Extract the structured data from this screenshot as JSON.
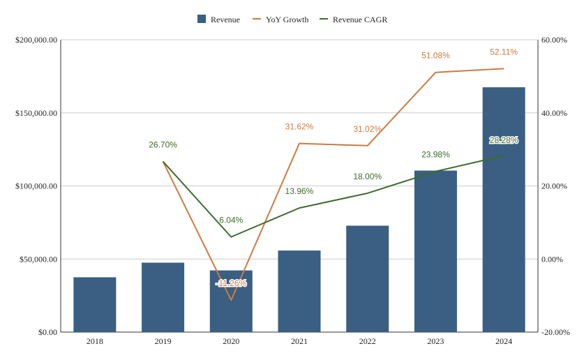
{
  "chart_data": {
    "type": "bar",
    "title": "",
    "xlabel": "",
    "ylabel": "",
    "categories": [
      "2018",
      "2019",
      "2020",
      "2021",
      "2022",
      "2023",
      "2024"
    ],
    "left_axis": {
      "ylim": [
        0,
        200000
      ],
      "ticks": [
        0,
        50000,
        100000,
        150000,
        200000
      ],
      "tick_labels": [
        "$0.00",
        "$50,000.00",
        "$100,000.00",
        "$150,000.00",
        "$200,000.00"
      ]
    },
    "right_axis": {
      "ylim": [
        -20,
        60
      ],
      "ticks": [
        -20,
        0,
        20,
        40,
        60
      ],
      "tick_labels": [
        "-20.00%",
        "0.00%",
        "20.00%",
        "40.00%",
        "60.00%"
      ]
    },
    "grid": true,
    "legend_position": "top-center",
    "series": [
      {
        "name": "Revenue",
        "type": "bar",
        "axis": "left",
        "color": "#3a5f82",
        "values": [
          37500,
          47500,
          42200,
          55800,
          72800,
          110500,
          167500
        ]
      },
      {
        "name": "YoY Growth",
        "type": "line",
        "axis": "right",
        "color": "#cd7a43",
        "values": [
          null,
          26.7,
          -11.26,
          31.62,
          31.02,
          51.08,
          52.11
        ],
        "labels": [
          "",
          "",
          "-11.26%",
          "31.62%",
          "31.02%",
          "51.08%",
          "52.11%"
        ]
      },
      {
        "name": "Revenue CAGR",
        "type": "line",
        "axis": "right",
        "color": "#3d6b2a",
        "values": [
          null,
          26.7,
          6.04,
          13.96,
          18.0,
          23.98,
          28.28
        ],
        "labels": [
          "",
          "26.70%",
          "6.04%",
          "13.96%",
          "18.00%",
          "23.98%",
          "28.28%"
        ]
      }
    ]
  }
}
